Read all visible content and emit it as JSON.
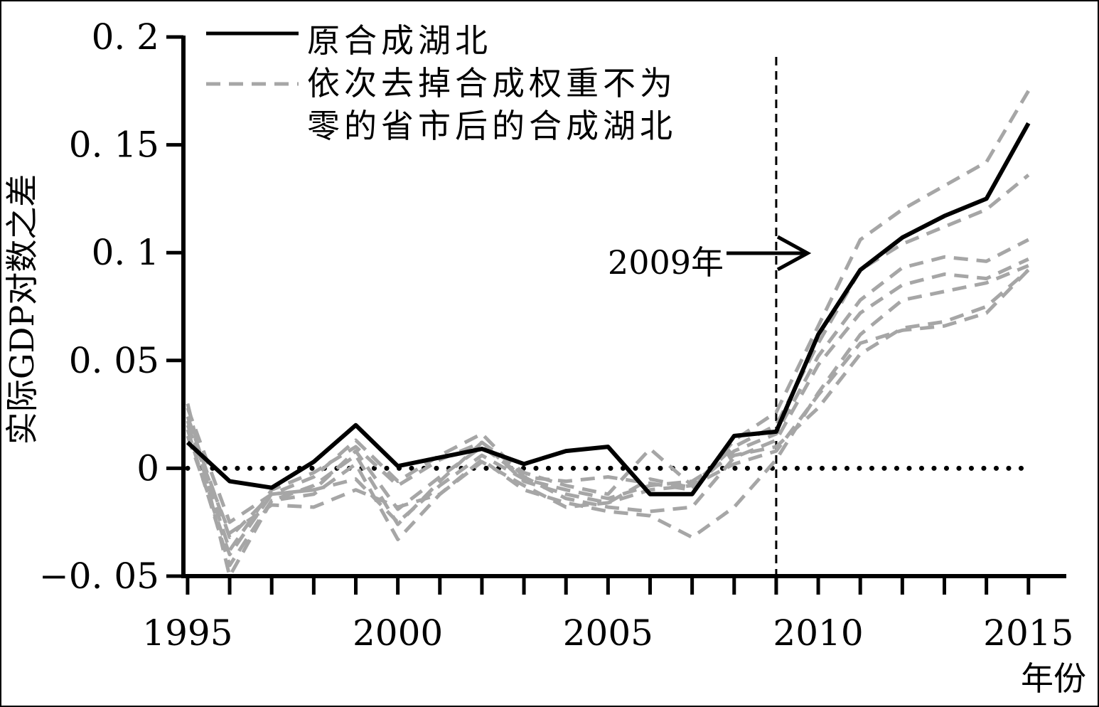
{
  "chart_data": {
    "type": "line",
    "title": "",
    "xlabel": "年份",
    "ylabel": "实际GDP对数之差",
    "xlim": [
      1994.9,
      2015.9
    ],
    "ylim": [
      -0.05,
      0.2
    ],
    "xticks": [
      1995,
      2000,
      2005,
      2010,
      2015
    ],
    "xtick_labels": [
      "1995",
      "2000",
      "2005",
      "2010",
      "2015"
    ],
    "yticks": [
      -0.05,
      0,
      0.05,
      0.1,
      0.15,
      0.2
    ],
    "ytick_labels": [
      "−0. 05",
      "0",
      "0. 05",
      "0. 1",
      "0. 15",
      "0. 2"
    ],
    "grid": false,
    "legend_position": "top-left",
    "legend": [
      {
        "label": "原合成湖北",
        "style": "solid",
        "color": "#000000"
      },
      {
        "label_lines": [
          "依次去掉合成权重不为",
          "零的省市后的合成湖北"
        ],
        "style": "dashed",
        "color": "#a6a6a6"
      }
    ],
    "annotation": {
      "text": "2009年",
      "x": 2009,
      "y": 0.1
    },
    "reference_lines": [
      {
        "type": "vertical",
        "x": 2009,
        "style": "dashed",
        "color": "#000000"
      },
      {
        "type": "horizontal",
        "y": 0,
        "style": "dotted",
        "color": "#000000"
      }
    ],
    "x": [
      1995,
      1996,
      1997,
      1998,
      1999,
      2000,
      2001,
      2002,
      2003,
      2004,
      2005,
      2006,
      2007,
      2008,
      2009,
      2010,
      2011,
      2012,
      2013,
      2014,
      2015
    ],
    "series": [
      {
        "name": "原合成湖北",
        "style": "solid",
        "color": "#000000",
        "values": [
          0.012,
          -0.006,
          -0.009,
          0.003,
          0.02,
          0.001,
          0.005,
          0.009,
          0.002,
          0.008,
          0.01,
          -0.012,
          -0.012,
          0.015,
          0.017,
          0.062,
          0.092,
          0.107,
          0.117,
          0.125,
          0.16
        ]
      },
      {
        "style": "dashed",
        "color": "#a6a6a6",
        "values": [
          0.028,
          -0.025,
          -0.012,
          -0.004,
          0.013,
          -0.006,
          0.006,
          0.016,
          -0.004,
          -0.006,
          -0.004,
          -0.007,
          -0.01,
          0.013,
          0.026,
          0.066,
          0.106,
          0.12,
          0.131,
          0.142,
          0.175
        ]
      },
      {
        "style": "dashed",
        "color": "#a6a6a6",
        "values": [
          0.022,
          -0.038,
          -0.01,
          -0.002,
          0.01,
          -0.008,
          0.004,
          0.012,
          -0.002,
          -0.008,
          -0.012,
          0.009,
          -0.008,
          0.01,
          0.02,
          0.058,
          0.092,
          0.104,
          0.112,
          0.12,
          0.136
        ]
      },
      {
        "style": "dashed",
        "color": "#a6a6a6",
        "values": [
          0.018,
          -0.045,
          -0.015,
          -0.008,
          0.006,
          -0.026,
          -0.006,
          0.012,
          -0.006,
          -0.012,
          -0.016,
          -0.005,
          -0.009,
          0.008,
          0.016,
          0.052,
          0.078,
          0.093,
          0.098,
          0.096,
          0.106
        ]
      },
      {
        "style": "dashed",
        "color": "#a6a6a6",
        "values": [
          0.015,
          -0.04,
          -0.012,
          -0.01,
          0.008,
          -0.019,
          -0.004,
          0.01,
          -0.004,
          -0.014,
          -0.018,
          -0.02,
          -0.018,
          0.005,
          0.013,
          0.048,
          0.072,
          0.085,
          0.09,
          0.088,
          0.097
        ]
      },
      {
        "style": "dashed",
        "color": "#a6a6a6",
        "values": [
          0.03,
          -0.05,
          -0.015,
          -0.012,
          0.002,
          -0.033,
          -0.012,
          0.004,
          -0.01,
          -0.016,
          -0.02,
          -0.022,
          -0.032,
          -0.018,
          0.004,
          0.035,
          0.062,
          0.078,
          0.082,
          0.086,
          0.094
        ]
      },
      {
        "style": "dashed",
        "color": "#a6a6a6",
        "values": [
          0.02,
          -0.03,
          -0.017,
          -0.018,
          -0.01,
          -0.018,
          -0.012,
          0.003,
          -0.008,
          -0.018,
          -0.016,
          -0.01,
          -0.008,
          0.002,
          0.008,
          0.034,
          0.058,
          0.064,
          0.066,
          0.072,
          0.092
        ]
      },
      {
        "style": "dashed",
        "color": "#a6a6a6",
        "values": [
          0.024,
          -0.032,
          -0.012,
          -0.01,
          -0.005,
          -0.025,
          -0.008,
          0.006,
          -0.005,
          -0.01,
          -0.014,
          -0.008,
          -0.006,
          0.006,
          0.01,
          0.028,
          0.053,
          0.065,
          0.068,
          0.075,
          0.092
        ]
      }
    ]
  }
}
